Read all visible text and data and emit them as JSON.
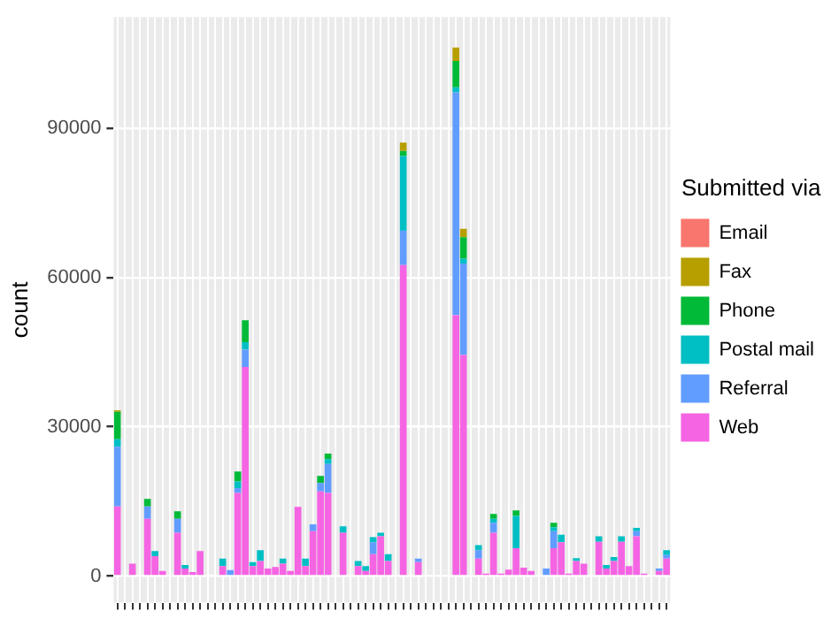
{
  "chart_data": {
    "type": "bar",
    "stacked": true,
    "ylabel": "count",
    "legend_title": "Submitted via",
    "legend": "right",
    "grid": true,
    "categories": [
      null,
      null,
      null,
      null,
      null,
      null,
      null,
      null,
      null,
      null,
      null,
      null,
      null,
      null,
      null,
      null,
      null,
      null,
      null,
      null,
      null,
      null,
      null,
      null,
      null,
      null,
      null,
      null,
      null,
      null,
      null,
      null,
      null,
      null,
      null,
      null,
      null,
      null,
      null,
      null,
      null,
      null,
      null,
      null,
      null,
      null,
      null,
      null,
      null,
      null,
      null,
      null,
      null,
      null,
      null,
      null,
      null,
      null,
      null,
      null,
      null,
      null,
      null,
      null,
      null,
      null,
      null,
      null,
      null,
      null,
      null,
      null,
      null,
      null
    ],
    "ylim": [
      -5350,
      112350
    ],
    "yticks": [
      0,
      30000,
      60000,
      90000
    ],
    "series": [
      {
        "name": "Web",
        "color": "#f564e3",
        "values": [
          14000,
          0,
          2500,
          0,
          11500,
          4000,
          1000,
          null,
          8700,
          1500,
          800,
          5000,
          null,
          0,
          2000,
          200,
          16700,
          42000,
          2000,
          3000,
          1500,
          1800,
          2500,
          1000,
          13900,
          2000,
          9000,
          17000,
          16700,
          0,
          8700,
          null,
          2000,
          1000,
          4400,
          8000,
          3000,
          0,
          62500,
          0,
          2800,
          0,
          0,
          0,
          0,
          52400,
          44400,
          0,
          3500,
          500,
          8700,
          500,
          1300,
          5600,
          1700,
          1000,
          null,
          0,
          5600,
          6800,
          500,
          3000,
          2500,
          0,
          6900,
          1500,
          3000,
          6900,
          2000,
          8000,
          500,
          0,
          1000,
          3500
        ]
      },
      {
        "name": "Referral",
        "color": "#619cff",
        "values": [
          12000,
          0,
          0,
          0,
          2500,
          0,
          0,
          0,
          2800,
          0,
          0,
          0,
          0,
          0,
          0,
          1000,
          1000,
          3500,
          0,
          0,
          0,
          0,
          0,
          0,
          0,
          0,
          1400,
          1700,
          5800,
          0,
          0,
          0,
          0,
          0,
          2400,
          0,
          0,
          0,
          6900,
          0,
          700,
          0,
          0,
          0,
          0,
          44800,
          18400,
          0,
          1700,
          0,
          2000,
          0,
          0,
          0,
          0,
          0,
          0,
          1500,
          3400,
          0,
          0,
          0,
          0,
          0,
          0,
          0,
          0,
          0,
          0,
          1000,
          0,
          0,
          500,
          700
        ]
      },
      {
        "name": "Postal mail",
        "color": "#00bfc4",
        "values": [
          1500,
          0,
          0,
          0,
          0,
          1000,
          0,
          0,
          0,
          700,
          0,
          0,
          0,
          0,
          1500,
          0,
          1300,
          1500,
          800,
          2200,
          0,
          0,
          1000,
          0,
          0,
          1500,
          0,
          0,
          1000,
          0,
          1300,
          0,
          1000,
          1000,
          1000,
          700,
          1400,
          0,
          15000,
          0,
          0,
          0,
          0,
          0,
          0,
          1000,
          1000,
          0,
          1000,
          0,
          800,
          0,
          0,
          6500,
          0,
          0,
          0,
          0,
          800,
          1500,
          0,
          600,
          0,
          0,
          1100,
          700,
          800,
          1100,
          0,
          700,
          0,
          0,
          0,
          1000
        ]
      },
      {
        "name": "Phone",
        "color": "#00ba38",
        "values": [
          5500,
          0,
          0,
          0,
          1500,
          0,
          0,
          0,
          1500,
          0,
          0,
          0,
          0,
          0,
          0,
          0,
          2000,
          4400,
          0,
          0,
          0,
          0,
          0,
          0,
          0,
          0,
          0,
          1400,
          1100,
          0,
          0,
          0,
          0,
          0,
          0,
          0,
          0,
          0,
          1000,
          0,
          0,
          0,
          0,
          0,
          0,
          5300,
          4300,
          0,
          0,
          0,
          1000,
          0,
          0,
          1100,
          0,
          0,
          0,
          0,
          900,
          0,
          0,
          0,
          0,
          0,
          0,
          0,
          0,
          0,
          0,
          0,
          0,
          0,
          0,
          0
        ]
      },
      {
        "name": "Fax",
        "color": "#b79f00",
        "values": [
          300,
          0,
          0,
          0,
          0,
          0,
          0,
          0,
          0,
          0,
          0,
          0,
          0,
          0,
          0,
          0,
          0,
          0,
          0,
          0,
          0,
          0,
          0,
          0,
          0,
          0,
          0,
          0,
          0,
          0,
          0,
          0,
          0,
          0,
          0,
          0,
          0,
          0,
          1700,
          0,
          0,
          0,
          0,
          0,
          0,
          2700,
          1700,
          0,
          0,
          0,
          0,
          0,
          0,
          0,
          0,
          0,
          0,
          0,
          0,
          0,
          0,
          0,
          0,
          0,
          0,
          0,
          0,
          0,
          0,
          0,
          0,
          0,
          0,
          0
        ]
      },
      {
        "name": "Email",
        "color": "#f8766d",
        "values": [
          0,
          0,
          0,
          0,
          0,
          0,
          0,
          0,
          0,
          0,
          0,
          0,
          0,
          0,
          0,
          0,
          0,
          0,
          0,
          0,
          0,
          0,
          0,
          0,
          0,
          0,
          0,
          0,
          0,
          0,
          0,
          0,
          0,
          0,
          0,
          0,
          0,
          0,
          0,
          0,
          0,
          0,
          0,
          0,
          0,
          0,
          0,
          0,
          0,
          0,
          0,
          0,
          0,
          0,
          0,
          0,
          0,
          0,
          0,
          0,
          0,
          0,
          0,
          0,
          0,
          0,
          0,
          0,
          0,
          0,
          0,
          0,
          0,
          0
        ]
      }
    ]
  }
}
